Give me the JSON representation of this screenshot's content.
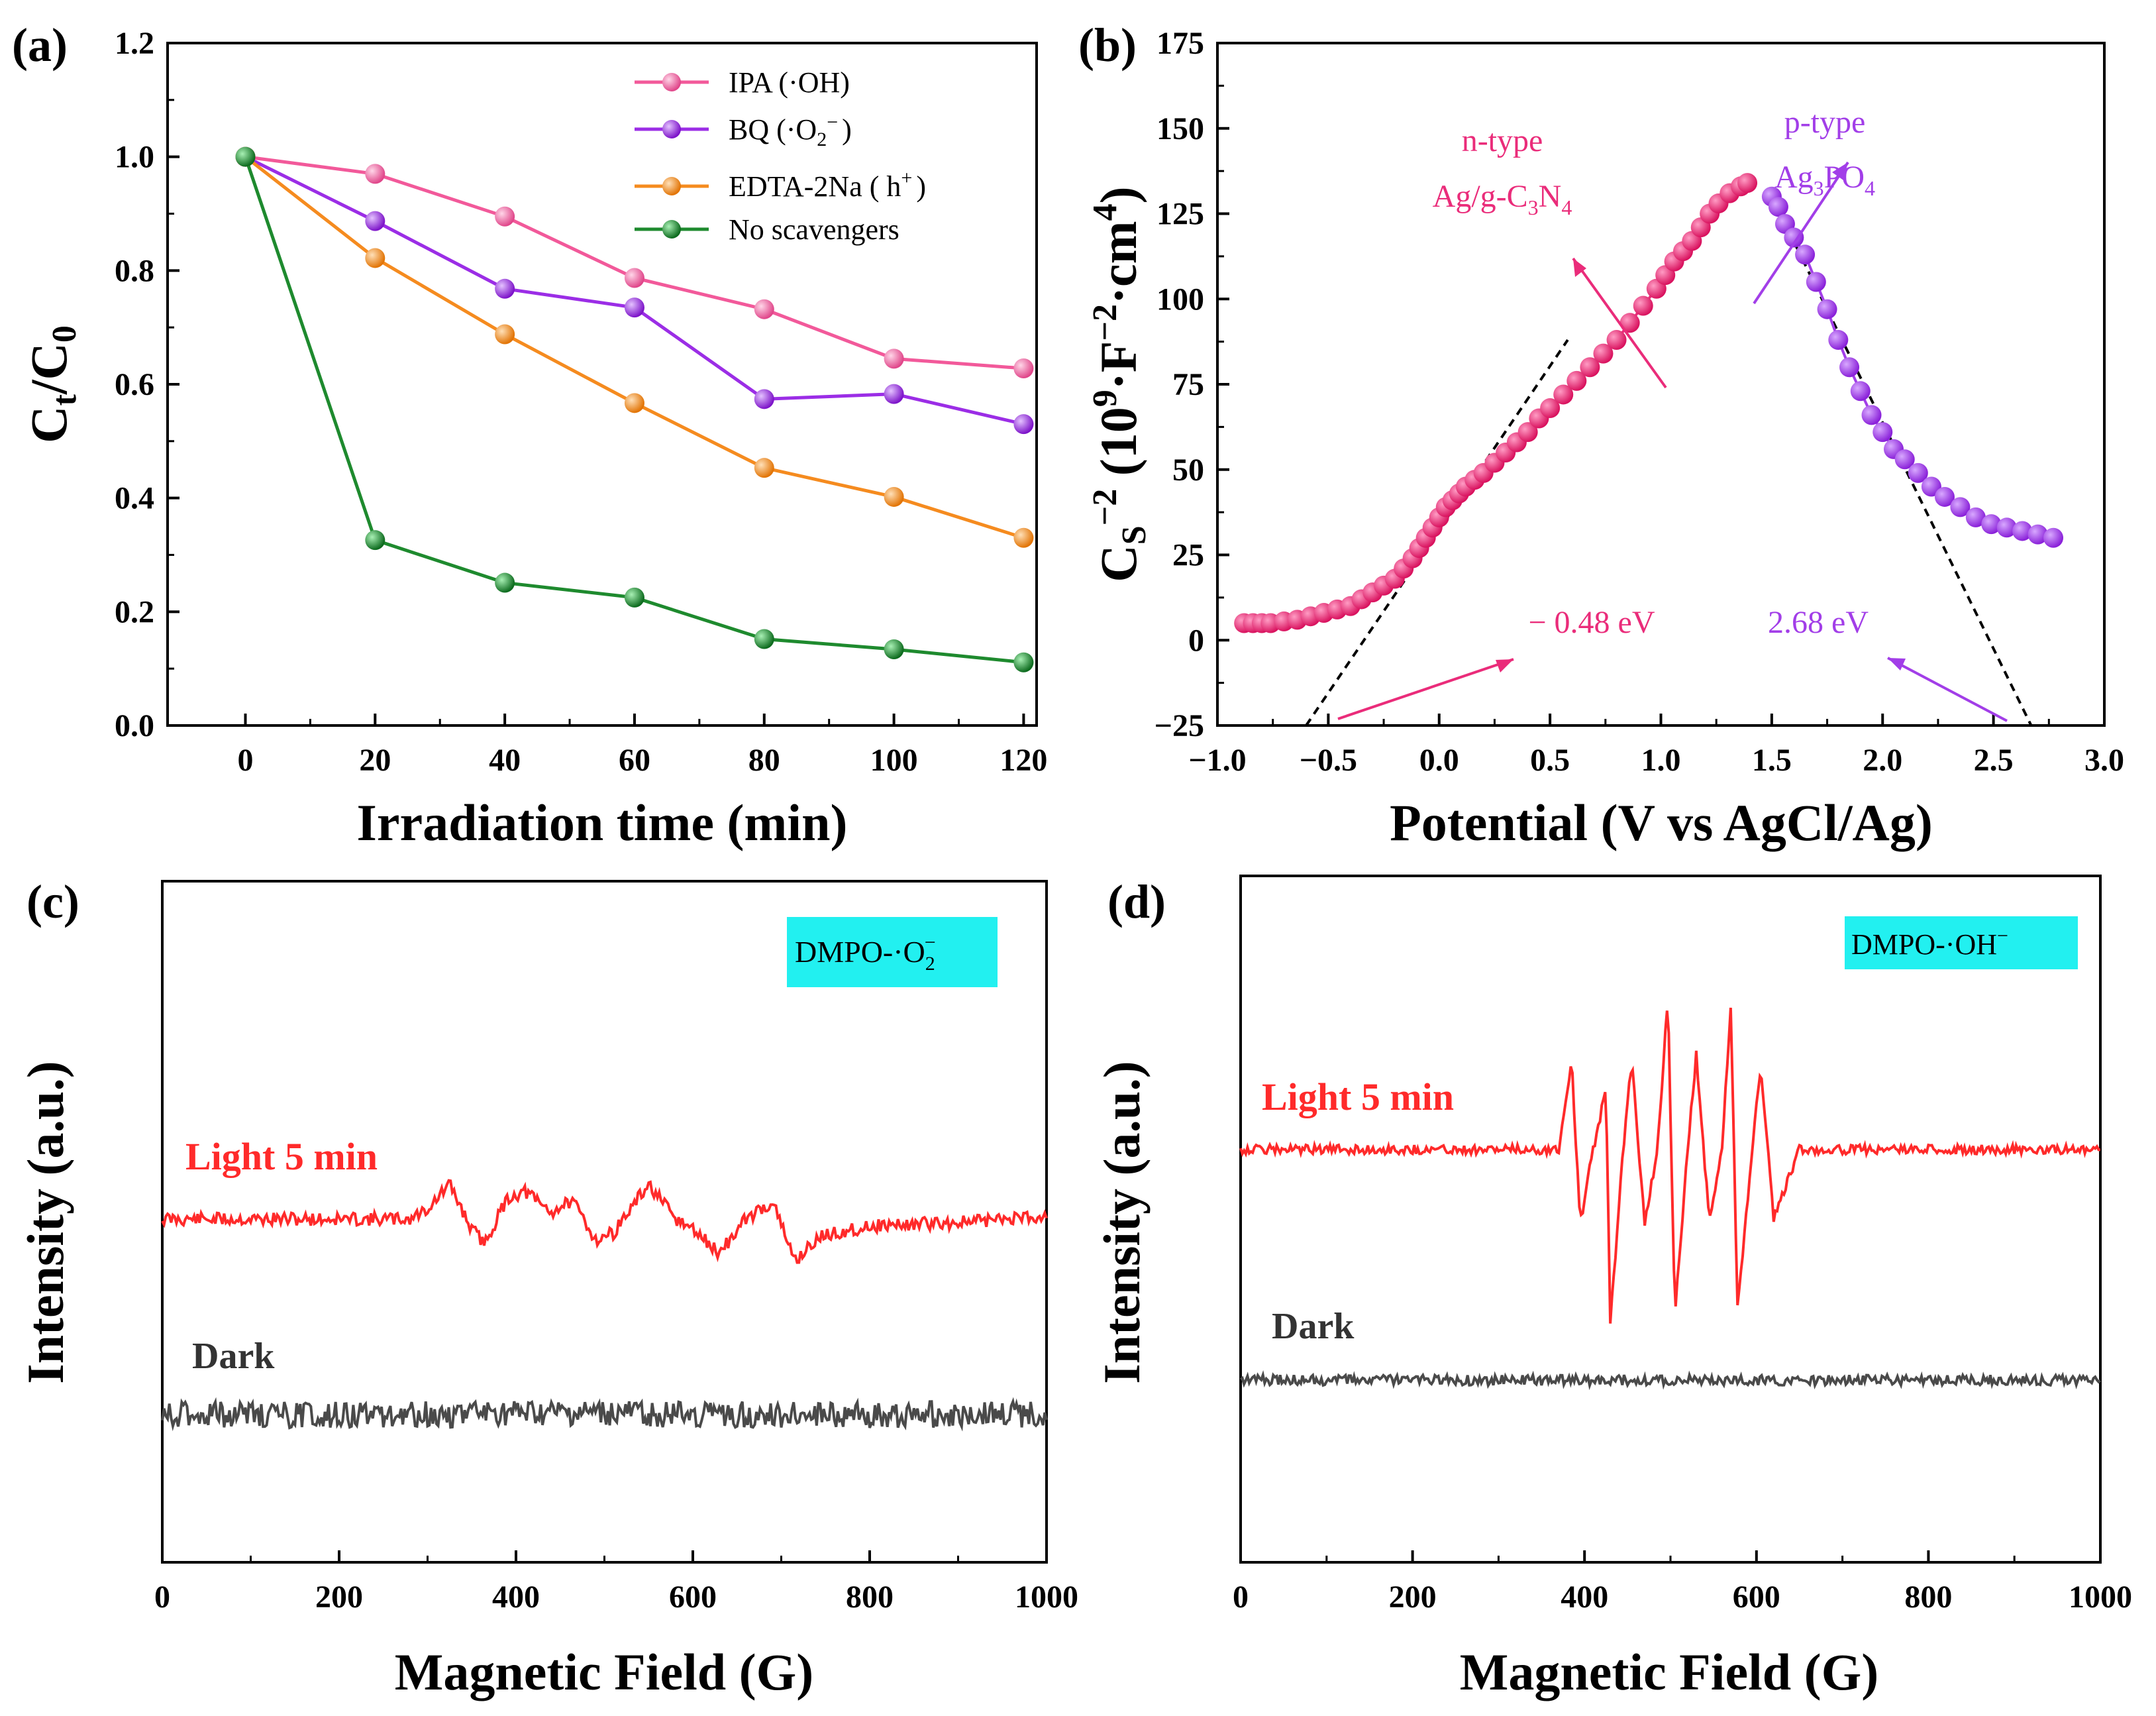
{
  "colors": {
    "ipa": "#f2599a",
    "bq": "#9b2de6",
    "edta": "#f58b1f",
    "none": "#1e8a2e",
    "pink_annot": "#ea2c7a",
    "purple_annot": "#a23ee8",
    "light": "#ff2a2a",
    "dark": "#4a4a4a",
    "box": "#22f0f0"
  },
  "chart_data": [
    {
      "panel": "(a)",
      "type": "line",
      "xlabel": "Irradiation time (min)",
      "ylabel": [
        "C",
        "t",
        "/C",
        "0"
      ],
      "xlim": [
        -12,
        122
      ],
      "ylim": [
        0,
        1.2
      ],
      "xticks": [
        "0",
        "20",
        "40",
        "60",
        "80",
        "100",
        "120"
      ],
      "yticks": [
        "0.0",
        "0.2",
        "0.4",
        "0.6",
        "0.8",
        "1.0",
        "1.2"
      ],
      "x": [
        0,
        20,
        40,
        60,
        80,
        100,
        120
      ],
      "series": [
        {
          "name": "IPA (·OH)",
          "color": "#f2599a",
          "values": [
            1.0,
            0.97,
            0.895,
            0.787,
            0.732,
            0.645,
            0.628
          ]
        },
        {
          "name": "BQ (·O2−)",
          "color": "#9b2de6",
          "values": [
            1.0,
            0.887,
            0.768,
            0.735,
            0.574,
            0.583,
            0.53
          ]
        },
        {
          "name": "EDTA-2Na (h+)",
          "color": "#f58b1f",
          "values": [
            1.0,
            0.822,
            0.688,
            0.567,
            0.453,
            0.402,
            0.33
          ]
        },
        {
          "name": "No scavengers",
          "color": "#1e8a2e",
          "values": [
            1.0,
            0.326,
            0.251,
            0.225,
            0.152,
            0.134,
            0.111
          ]
        }
      ],
      "legend": {
        "position": "top-right",
        "items": [
          {
            "main": "IPA (·OH)"
          },
          {
            "main": "BQ (·O",
            "sub": "2",
            "sup": "−",
            "tail": ")"
          },
          {
            "main": "EDTA-2Na ( h",
            "sup": "+",
            "tail": ")"
          },
          {
            "main": "No scavengers"
          }
        ]
      }
    },
    {
      "panel": "(b)",
      "type": "scatter",
      "xlabel": "Potential (V vs AgCl/Ag)",
      "ylabel": "C_S^−2 (10^9·F^−2·cm^4)",
      "xlim": [
        -1.0,
        3.0
      ],
      "ylim": [
        -25,
        175
      ],
      "xticks": [
        "−1.0",
        "−0.5",
        "0.0",
        "0.5",
        "1.0",
        "1.5",
        "2.0",
        "2.5",
        "3.0"
      ],
      "yticks": [
        "−25",
        "0",
        "25",
        "50",
        "75",
        "100",
        "125",
        "150",
        "175"
      ],
      "series": [
        {
          "name": "n-type Ag/g-C3N4",
          "color": "#ea2c7a",
          "x": [
            -0.88,
            -0.84,
            -0.8,
            -0.76,
            -0.7,
            -0.64,
            -0.58,
            -0.52,
            -0.46,
            -0.4,
            -0.35,
            -0.3,
            -0.25,
            -0.2,
            -0.16,
            -0.12,
            -0.09,
            -0.06,
            -0.03,
            0.0,
            0.03,
            0.06,
            0.09,
            0.12,
            0.16,
            0.2,
            0.25,
            0.3,
            0.35,
            0.4,
            0.45,
            0.5,
            0.56,
            0.62,
            0.68,
            0.74,
            0.8,
            0.86,
            0.92,
            0.98,
            1.02,
            1.06,
            1.1,
            1.14,
            1.18,
            1.22,
            1.26,
            1.31,
            1.36,
            1.39
          ],
          "y": [
            5,
            5,
            5,
            5,
            5.5,
            6,
            7,
            8,
            9,
            10,
            12,
            14,
            16,
            18,
            21,
            24,
            27,
            30,
            33,
            36,
            39,
            41,
            43,
            45,
            47,
            49,
            52,
            55,
            58,
            61,
            65,
            68,
            72,
            76,
            80,
            84,
            88,
            93,
            98,
            103,
            107,
            111,
            114,
            117,
            121,
            125,
            128,
            131,
            133,
            134
          ]
        },
        {
          "name": "p-type Ag3PO4",
          "color": "#a23ee8",
          "x": [
            1.5,
            1.53,
            1.56,
            1.6,
            1.65,
            1.7,
            1.75,
            1.8,
            1.85,
            1.9,
            1.95,
            2.0,
            2.05,
            2.1,
            2.16,
            2.22,
            2.28,
            2.35,
            2.42,
            2.49,
            2.56,
            2.63,
            2.7,
            2.77
          ],
          "y": [
            130,
            127,
            122,
            118,
            113,
            105,
            97,
            88,
            80,
            73,
            66,
            61,
            56,
            53,
            49,
            45,
            42,
            39,
            36,
            34,
            33,
            32,
            31,
            30
          ]
        }
      ],
      "fit_lines": [
        {
          "x": [
            -0.6,
            0.58
          ],
          "y": [
            -25,
            88
          ]
        },
        {
          "x": [
            1.5,
            2.67
          ],
          "y": [
            130,
            -25
          ]
        }
      ],
      "annotations": {
        "n_type": "n-type",
        "n_material": [
          "Ag/g-C",
          "3",
          "N",
          "4"
        ],
        "p_type": "p-type",
        "p_material": [
          "Ag",
          "3",
          "PO",
          "4"
        ],
        "n_value": "− 0.48 eV",
        "p_value": "2.68 eV"
      }
    },
    {
      "panel": "(c)",
      "type": "line",
      "xlabel": "Magnetic Field (G)",
      "ylabel": "Intensity (a.u.)",
      "xlim": [
        0,
        1000
      ],
      "xticks": [
        "0",
        "200",
        "400",
        "600",
        "800",
        "1000"
      ],
      "box_label": [
        "DMPO-·O",
        "2",
        "−"
      ],
      "series": [
        {
          "name": "Light 5 min",
          "color": "#ff2a2a",
          "x": [
            0,
            100,
            200,
            280,
            300,
            325,
            350,
            365,
            390,
            410,
            440,
            460,
            470,
            490,
            510,
            550,
            580,
            600,
            630,
            660,
            690,
            715,
            745,
            800,
            900,
            1000
          ],
          "y": [
            0,
            0,
            0,
            0,
            0.3,
            1,
            -0.3,
            -0.7,
            0.6,
            0.8,
            0.2,
            0.5,
            0.3,
            -0.6,
            -0.4,
            1.0,
            0,
            -0.3,
            -1.0,
            0,
            0.5,
            -1.2,
            -0.5,
            -0.2,
            -0.1,
            0.1
          ]
        },
        {
          "name": "Dark",
          "color": "#4a4a4a",
          "x": [
            0,
            1000
          ],
          "y": [
            0,
            0
          ]
        }
      ]
    },
    {
      "panel": "(d)",
      "type": "line",
      "xlabel": "Magnetic Field (G)",
      "ylabel": "Intensity (a.u.)",
      "xlim": [
        0,
        1000
      ],
      "xticks": [
        "0",
        "200",
        "400",
        "600",
        "800",
        "1000"
      ],
      "box_label": [
        "DMPO-·OH",
        "",
        "−"
      ],
      "series": [
        {
          "name": "Light 5 min",
          "color": "#ff2a2a",
          "x": [
            0,
            370,
            385,
            395,
            410,
            425,
            430,
            445,
            455,
            470,
            485,
            497,
            505,
            520,
            530,
            545,
            560,
            570,
            578,
            595,
            605,
            620,
            650,
            1000
          ],
          "y": [
            0,
            0,
            1.8,
            -1.5,
            0,
            1.2,
            -3.5,
            0,
            1.8,
            -1.5,
            0,
            3.1,
            -3.3,
            0,
            1.9,
            -1.4,
            0,
            2.9,
            -3.2,
            0,
            1.7,
            -1.4,
            0,
            0
          ]
        },
        {
          "name": "Dark",
          "color": "#4a4a4a",
          "x": [
            0,
            1000
          ],
          "y": [
            0,
            0
          ]
        }
      ]
    }
  ]
}
